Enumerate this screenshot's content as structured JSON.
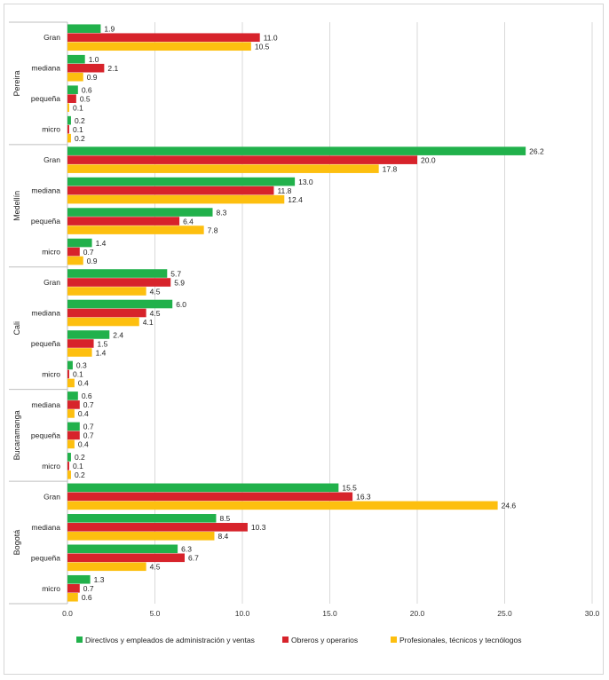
{
  "chart_data": {
    "type": "bar",
    "orientation": "horizontal",
    "title": "",
    "xlabel": "",
    "ylabel": "",
    "xlim": [
      0,
      30
    ],
    "xticks": [
      "0.0",
      "5.0",
      "10.0",
      "15.0",
      "20.0",
      "25.0",
      "30.0"
    ],
    "grid": true,
    "legend_position": "bottom",
    "colors": [
      "#21b14b",
      "#d7232b",
      "#fdbf0f"
    ],
    "series": [
      {
        "name": "Directivos y empleados de administración y ventas",
        "color": "#21b14b"
      },
      {
        "name": "Obreros y operarios",
        "color": "#d7232b"
      },
      {
        "name": "Profesionales, técnicos y tecnólogos",
        "color": "#fdbf0f"
      }
    ],
    "groups": [
      {
        "city": "Pereira",
        "categories": [
          {
            "name": "Gran",
            "values": [
              1.9,
              11.0,
              10.5
            ],
            "labels": [
              "1.9",
              "11.0",
              "10.5"
            ]
          },
          {
            "name": "mediana",
            "values": [
              1.0,
              2.1,
              0.9
            ],
            "labels": [
              "1.0",
              "2.1",
              "0.9"
            ]
          },
          {
            "name": "pequeña",
            "values": [
              0.6,
              0.5,
              0.1
            ],
            "labels": [
              "0.6",
              "0.5",
              "0.1"
            ]
          },
          {
            "name": "micro",
            "values": [
              0.2,
              0.1,
              0.2
            ],
            "labels": [
              "0.2",
              "0.1",
              "0.2"
            ]
          }
        ]
      },
      {
        "city": "Medellín",
        "categories": [
          {
            "name": "Gran",
            "values": [
              26.2,
              20.0,
              17.8
            ],
            "labels": [
              "26.2",
              "20.0",
              "17.8"
            ]
          },
          {
            "name": "mediana",
            "values": [
              13.0,
              11.8,
              12.4
            ],
            "labels": [
              "13.0",
              "11.8",
              "12.4"
            ]
          },
          {
            "name": "pequeña",
            "values": [
              8.3,
              6.4,
              7.8
            ],
            "labels": [
              "8.3",
              "6.4",
              "7.8"
            ]
          },
          {
            "name": "micro",
            "values": [
              1.4,
              0.7,
              0.9
            ],
            "labels": [
              "1.4",
              "0.7",
              "0.9"
            ]
          }
        ]
      },
      {
        "city": "Cali",
        "categories": [
          {
            "name": "Gran",
            "values": [
              5.7,
              5.9,
              4.5
            ],
            "labels": [
              "5.7",
              "5.9",
              "4.5"
            ]
          },
          {
            "name": "mediana",
            "values": [
              6.0,
              4.5,
              4.1
            ],
            "labels": [
              "6.0",
              "4.5",
              "4.1"
            ]
          },
          {
            "name": "pequeña",
            "values": [
              2.4,
              1.5,
              1.4
            ],
            "labels": [
              "2.4",
              "1.5",
              "1.4"
            ]
          },
          {
            "name": "micro",
            "values": [
              0.3,
              0.1,
              0.4
            ],
            "labels": [
              "0.3",
              "0.1",
              "0.4"
            ]
          }
        ]
      },
      {
        "city": "Bucaramanga",
        "categories": [
          {
            "name": "mediana",
            "values": [
              0.6,
              0.7,
              0.4
            ],
            "labels": [
              "0.6",
              "0.7",
              "0.4"
            ]
          },
          {
            "name": "pequeña",
            "values": [
              0.7,
              0.7,
              0.4
            ],
            "labels": [
              "0.7",
              "0.7",
              "0.4"
            ]
          },
          {
            "name": "micro",
            "values": [
              0.2,
              0.1,
              0.2
            ],
            "labels": [
              "0.2",
              "0.1",
              "0.2"
            ]
          }
        ]
      },
      {
        "city": "Bogotá",
        "categories": [
          {
            "name": "Gran",
            "values": [
              15.5,
              16.3,
              24.6
            ],
            "labels": [
              "15.5",
              "16.3",
              "24.6"
            ]
          },
          {
            "name": "mediana",
            "values": [
              8.5,
              10.3,
              8.4
            ],
            "labels": [
              "8.5",
              "10.3",
              "8.4"
            ]
          },
          {
            "name": "pequeña",
            "values": [
              6.3,
              6.7,
              4.5
            ],
            "labels": [
              "6.3",
              "6.7",
              "4.5"
            ]
          },
          {
            "name": "micro",
            "values": [
              1.3,
              0.7,
              0.6
            ],
            "labels": [
              "1.3",
              "0.7",
              "0.6"
            ]
          }
        ]
      }
    ]
  }
}
